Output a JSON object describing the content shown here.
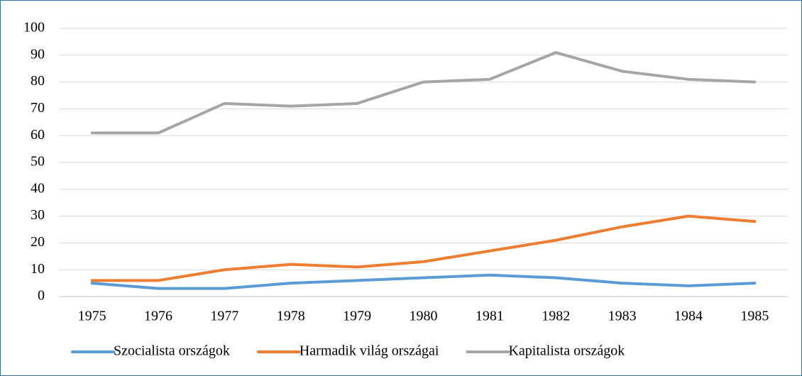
{
  "chart_data": {
    "type": "line",
    "categories": [
      "1975",
      "1976",
      "1977",
      "1978",
      "1979",
      "1980",
      "1981",
      "1982",
      "1983",
      "1984",
      "1985"
    ],
    "series": [
      {
        "name": "Szocialista országok",
        "color": "#5b9bd5",
        "values": [
          5,
          3,
          3,
          5,
          6,
          7,
          8,
          7,
          5,
          4,
          5
        ]
      },
      {
        "name": "Harmadik világ országai",
        "color": "#ed7d31",
        "values": [
          6,
          6,
          10,
          12,
          11,
          13,
          17,
          21,
          26,
          30,
          28
        ]
      },
      {
        "name": "Kapitalista országok",
        "color": "#a5a5a5",
        "values": [
          61,
          61,
          72,
          71,
          72,
          80,
          81,
          91,
          84,
          81,
          80
        ]
      }
    ],
    "ylim": [
      0,
      100
    ],
    "yticks": [
      0,
      10,
      20,
      30,
      40,
      50,
      60,
      70,
      80,
      90,
      100
    ],
    "grid": true,
    "legend": "bottom"
  }
}
